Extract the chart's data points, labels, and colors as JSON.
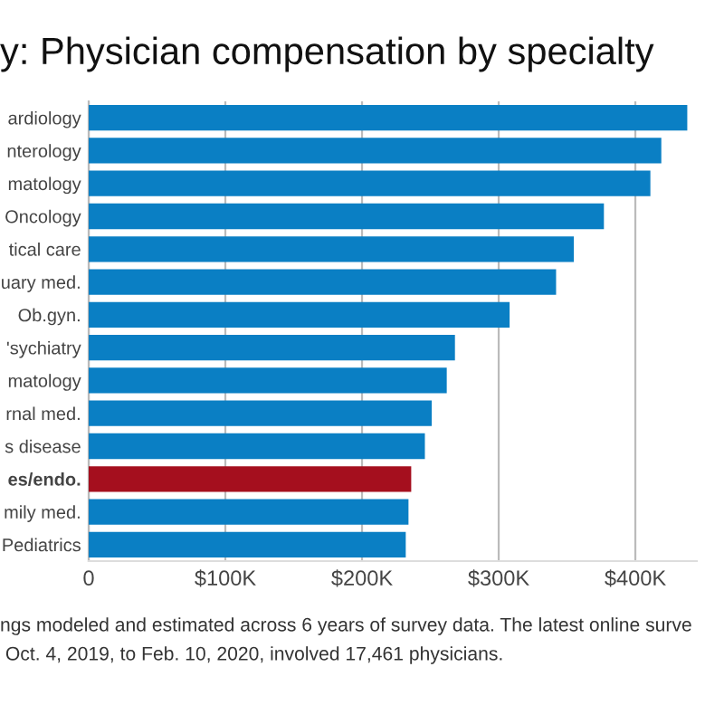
{
  "chart_data": {
    "type": "bar",
    "orientation": "horizontal",
    "title": "y: Physician compensation by specialty",
    "categories": [
      "ardiology",
      "nterology",
      "matology",
      "Oncology",
      "tical care",
      "uary med.",
      "Ob.gyn.",
      "'sychiatry",
      "matology",
      "rnal med.",
      "s disease",
      "es/endo.",
      "mily med.",
      "Pediatrics"
    ],
    "values": [
      438000,
      419000,
      411000,
      377000,
      355000,
      342000,
      308000,
      268000,
      262000,
      251000,
      246000,
      236000,
      234000,
      232000
    ],
    "colors": [
      "#0a7fc4",
      "#0a7fc4",
      "#0a7fc4",
      "#0a7fc4",
      "#0a7fc4",
      "#0a7fc4",
      "#0a7fc4",
      "#0a7fc4",
      "#0a7fc4",
      "#0a7fc4",
      "#0a7fc4",
      "#a50f1e",
      "#0a7fc4",
      "#0a7fc4"
    ],
    "xlim": [
      0,
      445000
    ],
    "xticks": [
      {
        "value": 0,
        "label": "0"
      },
      {
        "value": 100000,
        "label": "$100K"
      },
      {
        "value": 200000,
        "label": "$200K"
      },
      {
        "value": 300000,
        "label": "$300K"
      },
      {
        "value": 400000,
        "label": "$400K"
      }
    ],
    "grid": "x",
    "annotations": [
      "ngs modeled and estimated across 6 years of survey data. The latest online surve",
      " Oct. 4, 2019, to Feb. 10, 2020, involved 17,461 physicians."
    ]
  }
}
